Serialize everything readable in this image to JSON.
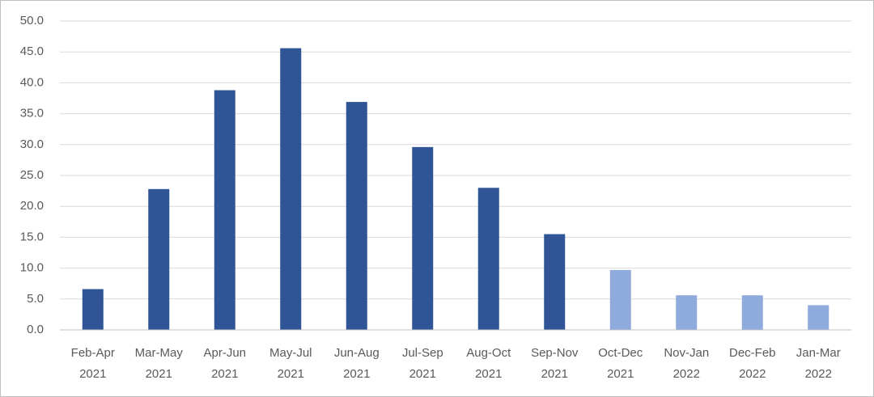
{
  "chart_data": {
    "type": "bar",
    "categories": [
      [
        "Feb-Apr",
        "2021"
      ],
      [
        "Mar-May",
        "2021"
      ],
      [
        "Apr-Jun",
        "2021"
      ],
      [
        "May-Jul",
        "2021"
      ],
      [
        "Jun-Aug",
        "2021"
      ],
      [
        "Jul-Sep",
        "2021"
      ],
      [
        "Aug-Oct",
        "2021"
      ],
      [
        "Sep-Nov",
        "2021"
      ],
      [
        "Oct-Dec",
        "2021"
      ],
      [
        "Nov-Jan",
        "2022"
      ],
      [
        "Dec-Feb",
        "2022"
      ],
      [
        "Jan-Mar",
        "2022"
      ]
    ],
    "values": [
      6.6,
      22.8,
      38.8,
      45.6,
      36.9,
      29.6,
      23.0,
      15.5,
      9.7,
      5.6,
      5.6,
      4.0
    ],
    "colors": [
      "#2f5597",
      "#2f5597",
      "#2f5597",
      "#2f5597",
      "#2f5597",
      "#2f5597",
      "#2f5597",
      "#2f5597",
      "#8faadc",
      "#8faadc",
      "#8faadc",
      "#8faadc"
    ],
    "ylim": [
      0,
      50
    ],
    "yticks": [
      {
        "value": 0,
        "label": "0.0"
      },
      {
        "value": 5,
        "label": "5.0"
      },
      {
        "value": 10,
        "label": "10.0"
      },
      {
        "value": 15,
        "label": "15.0"
      },
      {
        "value": 20,
        "label": "20.0"
      },
      {
        "value": 25,
        "label": "25.0"
      },
      {
        "value": 30,
        "label": "30.0"
      },
      {
        "value": 35,
        "label": "35.0"
      },
      {
        "value": 40,
        "label": "40.0"
      },
      {
        "value": 45,
        "label": "45.0"
      },
      {
        "value": 50,
        "label": "50.0"
      }
    ],
    "grid": true
  }
}
